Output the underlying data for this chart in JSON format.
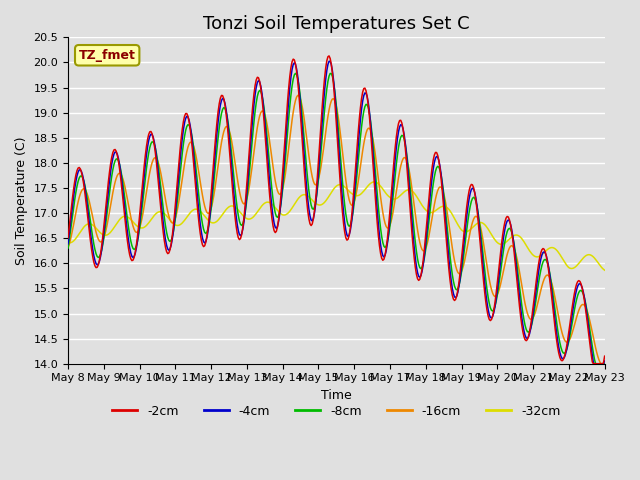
{
  "title": "Tonzi Soil Temperatures Set C",
  "xlabel": "Time",
  "ylabel": "Soil Temperature (C)",
  "annotation": "TZ_fmet",
  "ylim": [
    14.0,
    20.5
  ],
  "yticks": [
    14.0,
    14.5,
    15.0,
    15.5,
    16.0,
    16.5,
    17.0,
    17.5,
    18.0,
    18.5,
    19.0,
    19.5,
    20.0,
    20.5
  ],
  "xtick_labels": [
    "May 8",
    "May 9",
    "May 10",
    "May 11",
    "May 12",
    "May 13",
    "May 14",
    "May 15",
    "May 16",
    "May 17",
    "May 18",
    "May 19",
    "May 20",
    "May 21",
    "May 22",
    "May 23"
  ],
  "series_colors": [
    "#dd0000",
    "#0000cc",
    "#00bb00",
    "#ee8800",
    "#dddd00"
  ],
  "series_labels": [
    "-2cm",
    "-4cm",
    "-8cm",
    "-16cm",
    "-32cm"
  ],
  "background_color": "#e0e0e0",
  "plot_bg_color": "#e0e0e0",
  "grid_color": "#ffffff",
  "title_fontsize": 13,
  "axis_fontsize": 9,
  "tick_fontsize": 8,
  "legend_fontsize": 9,
  "n_points": 480
}
